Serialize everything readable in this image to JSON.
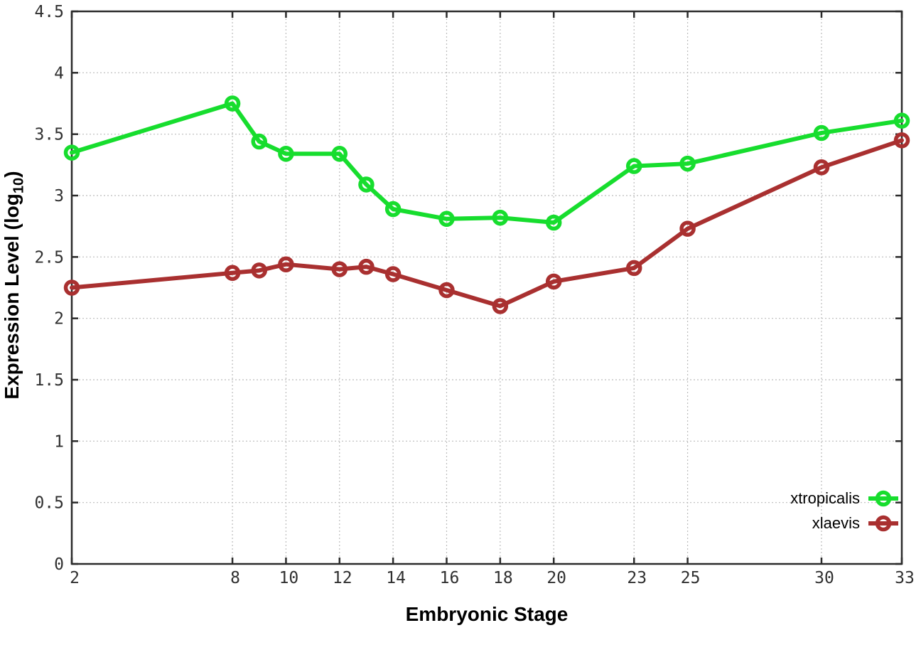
{
  "figure": {
    "background": "#ffffff"
  },
  "chart_data": {
    "type": "line",
    "title": "",
    "xlabel": "Embryonic Stage",
    "ylabel": {
      "main": "Expression Level (log",
      "sub": "10",
      "end": ")"
    },
    "x": [
      2,
      8,
      9,
      10,
      12,
      13,
      14,
      16,
      18,
      20,
      23,
      25,
      30,
      33
    ],
    "series": [
      {
        "name": "xtropicalis",
        "color": "#17dd2e",
        "values": [
          3.35,
          3.75,
          3.44,
          3.34,
          3.34,
          3.09,
          2.89,
          2.81,
          2.82,
          2.78,
          3.24,
          3.26,
          3.51,
          3.61
        ]
      },
      {
        "name": "xlaevis",
        "color": "#a93030",
        "values": [
          2.25,
          2.37,
          2.39,
          2.44,
          2.4,
          2.42,
          2.36,
          2.23,
          2.1,
          2.3,
          2.41,
          2.73,
          3.23,
          3.45
        ]
      }
    ],
    "xlim": [
      2,
      33
    ],
    "ylim": [
      0,
      4.5
    ],
    "xticks": [
      2,
      8,
      10,
      12,
      14,
      16,
      18,
      20,
      23,
      25,
      30,
      33
    ],
    "xtick_labels": [
      "2",
      "8",
      "10",
      "12",
      "14",
      "16",
      "18",
      "20",
      "23",
      "25",
      "30",
      "33"
    ],
    "yticks": [
      0,
      0.5,
      1,
      1.5,
      2,
      2.5,
      3,
      3.5,
      4,
      4.5
    ],
    "ytick_labels": [
      "0",
      "0.5",
      "1",
      "1.5",
      "2",
      "2.5",
      "3",
      "3.5",
      "4",
      "4.5"
    ],
    "grid": true,
    "legend_position": "bottom-right",
    "colors": {
      "grid": "#bcbcbc",
      "axis": "#2b2b2b",
      "tick_label": "#303030"
    }
  }
}
